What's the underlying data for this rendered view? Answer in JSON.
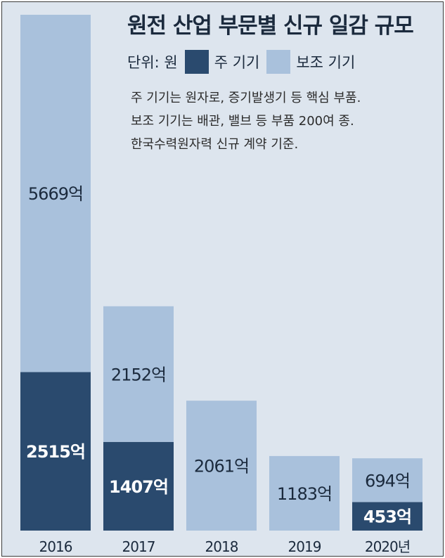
{
  "chart_data": {
    "type": "bar",
    "stacked": true,
    "title": "원전 산업 부문별 신규 일감 규모",
    "unit_label": "단위: 원",
    "notes": [
      "주 기기는 원자로, 증기발생기 등 핵심 부품.",
      "보조 기기는 배관, 밸브 등 부품 200여 종.",
      "한국수력원자력 신규 계약 기준."
    ],
    "categories": [
      "2016",
      "2017",
      "2018",
      "2019",
      "2020년"
    ],
    "series": [
      {
        "name": "주 기기",
        "color": "#2a4a6e",
        "values": [
          2515,
          1407,
          0,
          0,
          453
        ],
        "labels": [
          "2515억",
          "1407억",
          "",
          "",
          "453억"
        ],
        "label_color": "#ffffff"
      },
      {
        "name": "보조 기기",
        "color": "#a9c1dc",
        "values": [
          5669,
          2152,
          2061,
          1183,
          694
        ],
        "labels": [
          "5669억",
          "2152억",
          "2061억",
          "1183억",
          "694억"
        ],
        "label_color": "#1b2a3d"
      }
    ],
    "ylim": [
      0,
      8184
    ],
    "grid": false,
    "legend_placement": "top"
  }
}
